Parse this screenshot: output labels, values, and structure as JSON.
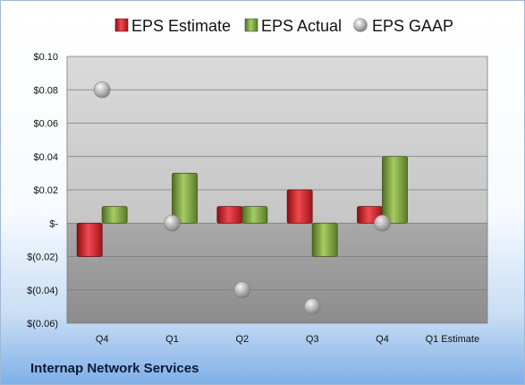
{
  "chart_data": {
    "type": "bar",
    "categories": [
      "Q4",
      "Q1",
      "Q2",
      "Q3",
      "Q4",
      "Q1 Estimate"
    ],
    "series": [
      {
        "name": "EPS Estimate",
        "type": "bar",
        "color": "#d8222b",
        "values": [
          -0.02,
          null,
          0.01,
          0.02,
          0.01,
          null
        ]
      },
      {
        "name": "EPS Actual",
        "type": "bar",
        "color": "#79a03a",
        "values": [
          0.01,
          0.03,
          0.01,
          -0.02,
          0.04,
          null
        ]
      },
      {
        "name": "EPS GAAP",
        "type": "scatter",
        "color": "#b8b8b8",
        "values": [
          0.08,
          0.0,
          -0.04,
          -0.05,
          0.0,
          null
        ]
      }
    ],
    "ylim": [
      -0.06,
      0.1
    ],
    "yticks": [
      0.1,
      0.08,
      0.06,
      0.04,
      0.02,
      0.0,
      -0.02,
      -0.04,
      -0.06
    ],
    "ytick_labels": [
      "$0.10",
      "$0.08",
      "$0.06",
      "$0.04",
      "$0.02",
      "$-",
      "$(0.02)",
      "$(0.04)",
      "$(0.06)"
    ],
    "grid": true,
    "legend": "top"
  },
  "footer": {
    "company": "Internap Network Services"
  }
}
